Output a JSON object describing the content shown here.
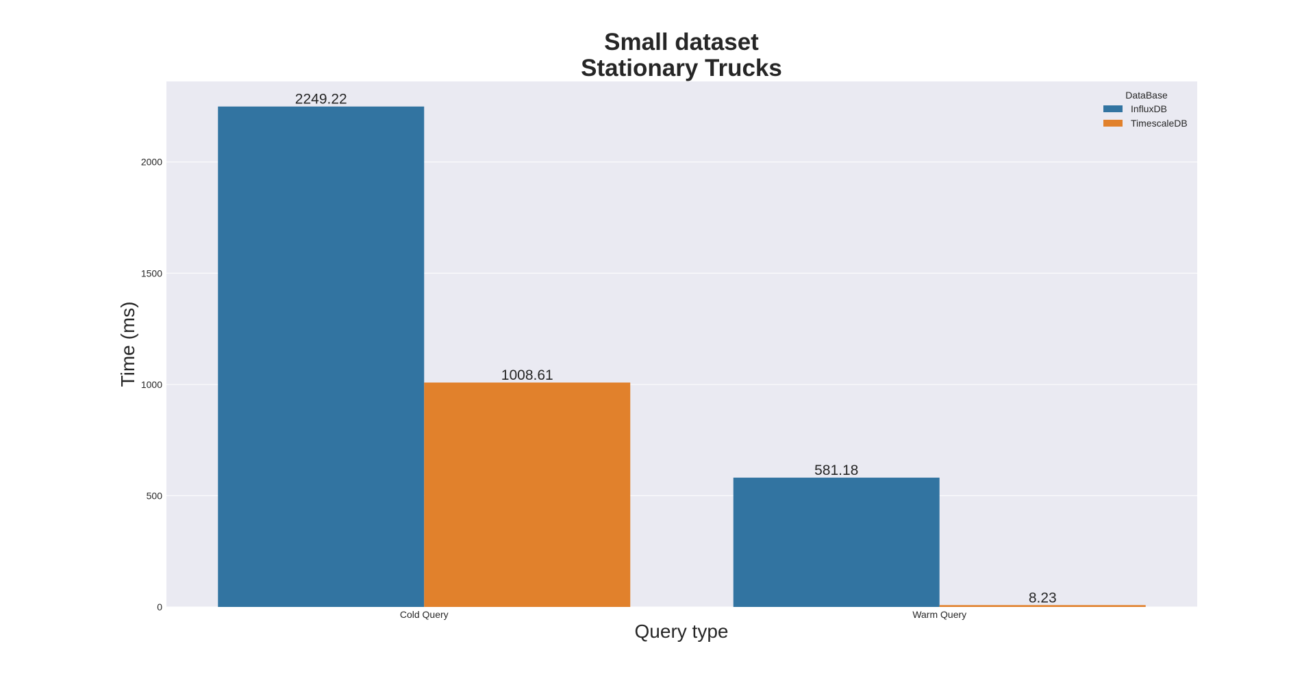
{
  "chart_data": {
    "type": "bar",
    "title": [
      "Small dataset",
      "Stationary Trucks"
    ],
    "xlabel": "Query type",
    "ylabel": "Time (ms)",
    "categories": [
      "Cold Query",
      "Warm Query"
    ],
    "series": [
      {
        "name": "InfluxDB",
        "values": [
          2249.22,
          581.18
        ],
        "labels": [
          "2249.22",
          "581.18"
        ]
      },
      {
        "name": "TimescaleDB",
        "values": [
          1008.61,
          8.23
        ],
        "labels": [
          "1008.61",
          "8.23"
        ]
      }
    ],
    "yticks": [
      0,
      500,
      1000,
      1500,
      2000
    ],
    "ylim": [
      0,
      2362
    ],
    "legend": {
      "title": "DataBase",
      "placement": "top-right"
    },
    "grid": true,
    "colors": {
      "InfluxDB": "#3274a1",
      "TimescaleDB": "#e1812c",
      "plot_background": "#eaeaf2",
      "grid": "#ffffff"
    }
  }
}
